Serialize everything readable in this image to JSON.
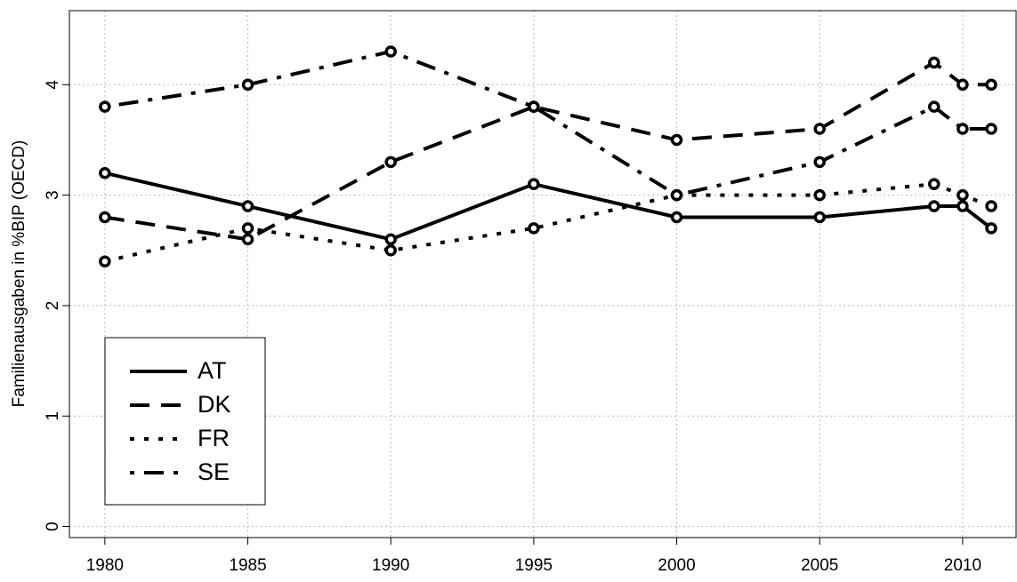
{
  "chart_data": {
    "type": "line",
    "y_label": "Familienausgaben in %BIP (OECD)",
    "x": [
      1980,
      1985,
      1990,
      1995,
      2000,
      2005,
      2009,
      2010,
      2011
    ],
    "series": [
      {
        "name": "AT",
        "color": "#000000",
        "linestyle": "solid",
        "values": [
          3.2,
          2.9,
          2.6,
          3.1,
          2.8,
          2.8,
          2.9,
          2.9,
          2.7
        ]
      },
      {
        "name": "DK",
        "color": "#000000",
        "linestyle": "dashed",
        "values": [
          2.8,
          2.6,
          3.3,
          3.8,
          3.5,
          3.6,
          4.2,
          4.0,
          4.0
        ]
      },
      {
        "name": "FR",
        "color": "#000000",
        "linestyle": "dotted",
        "values": [
          2.4,
          2.7,
          2.5,
          2.7,
          3.0,
          3.0,
          3.1,
          3.0,
          2.9
        ]
      },
      {
        "name": "SE",
        "color": "#000000",
        "linestyle": "dotdash",
        "values": [
          3.8,
          4.0,
          4.3,
          3.8,
          3.0,
          3.3,
          3.8,
          3.6,
          3.6
        ]
      }
    ],
    "xlim": [
      1978.76,
      2011.87
    ],
    "xticks": [
      1980,
      1985,
      1990,
      1995,
      2000,
      2005,
      2010
    ],
    "ylim": [
      -0.1,
      4.67
    ],
    "yticks": [
      0,
      1,
      2,
      3,
      4
    ],
    "grid": true,
    "markers": true,
    "legend": "bottom-left"
  }
}
